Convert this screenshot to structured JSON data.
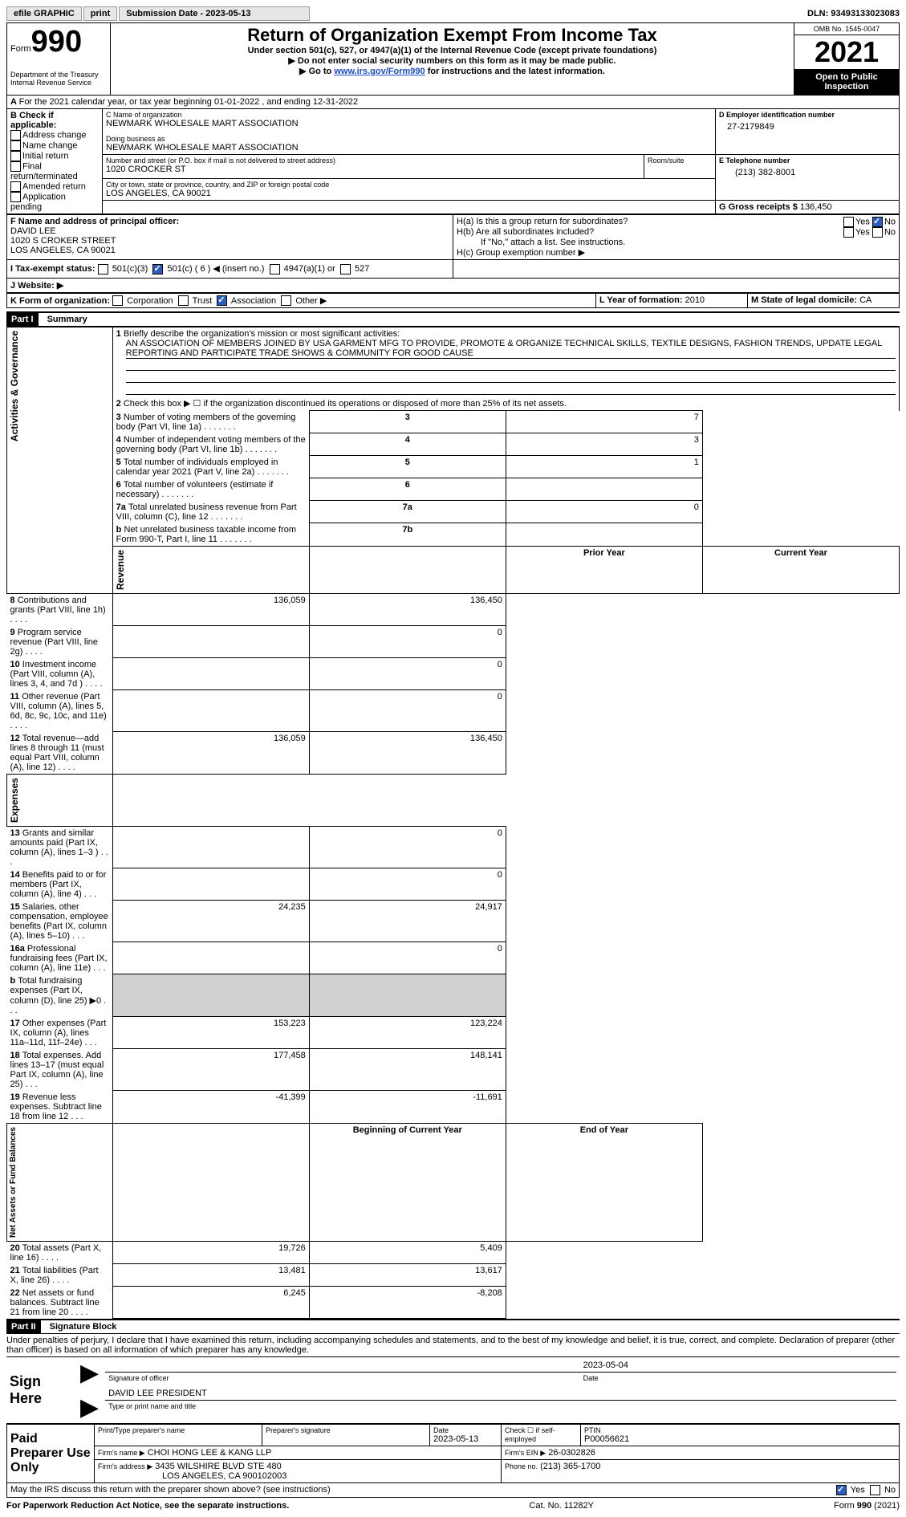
{
  "topbar": {
    "efile": "efile GRAPHIC",
    "print": "print",
    "submission_label": "Submission Date - 2023-05-13",
    "dln": "DLN: 93493133023083"
  },
  "header": {
    "form_label": "Form",
    "form_number": "990",
    "title": "Return of Organization Exempt From Income Tax",
    "subtitle": "Under section 501(c), 527, or 4947(a)(1) of the Internal Revenue Code (except private foundations)",
    "note1": "▶ Do not enter social security numbers on this form as it may be made public.",
    "note2_pre": "▶ Go to ",
    "note2_link": "www.irs.gov/Form990",
    "note2_post": " for instructions and the latest information.",
    "dept": "Department of the Treasury\nInternal Revenue Service",
    "omb": "OMB No. 1545-0047",
    "year": "2021",
    "open": "Open to Public Inspection"
  },
  "sectionA": {
    "calendar_line": "For the 2021 calendar year, or tax year beginning 01-01-2022   , and ending 12-31-2022",
    "check_label": "B Check if applicable:",
    "checks": [
      "Address change",
      "Name change",
      "Initial return",
      "Final return/terminated",
      "Amended return",
      "Application pending"
    ],
    "name_label": "C Name of organization",
    "org_name": "NEWMARK WHOLESALE MART ASSOCIATION",
    "dba_label": "Doing business as",
    "dba": "NEWMARK WHOLESALE MART ASSOCIATION",
    "street_label": "Number and street (or P.O. box if mail is not delivered to street address)",
    "room_label": "Room/suite",
    "street": "1020 CROCKER ST",
    "city_label": "City or town, state or province, country, and ZIP or foreign postal code",
    "city": "LOS ANGELES, CA  90021",
    "ein_label": "D Employer identification number",
    "ein": "27-2179849",
    "tel_label": "E Telephone number",
    "tel": "(213) 382-8001",
    "gross_label": "G Gross receipts $",
    "gross": "136,450",
    "officer_label": "F Name and address of principal officer:",
    "officer_name": "DAVID LEE",
    "officer_street": "1020 S CROKER STREET",
    "officer_city": "LOS ANGELES, CA  90021",
    "ha_label": "H(a)  Is this a group return for subordinates?",
    "hb_label": "H(b)  Are all subordinates included?",
    "hb_note": "If \"No,\" attach a list. See instructions.",
    "hc_label": "H(c)  Group exemption number ▶",
    "yes": "Yes",
    "no": "No",
    "tax_status_label": "I  Tax-exempt status:",
    "status_501c3": "501(c)(3)",
    "status_501c": "501(c) ( 6 ) ◀ (insert no.)",
    "status_4947": "4947(a)(1) or",
    "status_527": "527",
    "website_label": "J  Website: ▶",
    "form_org_label": "K Form of organization:",
    "corp": "Corporation",
    "trust": "Trust",
    "assoc": "Association",
    "other": "Other ▶",
    "year_formation_label": "L Year of formation:",
    "year_formation": "2010",
    "state_label": "M State of legal domicile:",
    "state": "CA"
  },
  "part1": {
    "header": "Part I",
    "title": "Summary",
    "line1_label": "Briefly describe the organization's mission or most significant activities:",
    "mission": "AN ASSOCIATION OF MEMBERS JOINED BY USA GARMENT MFG TO PROVIDE, PROMOTE & ORGANIZE TECHNICAL SKILLS, TEXTILE DESIGNS, FASHION TRENDS, UPDATE LEGAL REPORTING AND PARTICIPATE TRADE SHOWS & COMMUNITY FOR GOOD CAUSE",
    "line2": "Check this box ▶ ☐ if the organization discontinued its operations or disposed of more than 25% of its net assets.",
    "rows": [
      {
        "n": "3",
        "label": "Number of voting members of the governing body (Part VI, line 1a)",
        "box": "3",
        "val": "7"
      },
      {
        "n": "4",
        "label": "Number of independent voting members of the governing body (Part VI, line 1b)",
        "box": "4",
        "val": "3"
      },
      {
        "n": "5",
        "label": "Total number of individuals employed in calendar year 2021 (Part V, line 2a)",
        "box": "5",
        "val": "1"
      },
      {
        "n": "6",
        "label": "Total number of volunteers (estimate if necessary)",
        "box": "6",
        "val": ""
      },
      {
        "n": "7a",
        "label": "Total unrelated business revenue from Part VIII, column (C), line 12",
        "box": "7a",
        "val": "0"
      },
      {
        "n": "b",
        "label": "Net unrelated business taxable income from Form 990-T, Part I, line 11",
        "box": "7b",
        "val": ""
      }
    ],
    "prior_year": "Prior Year",
    "current_year": "Current Year",
    "revenue_rows": [
      {
        "n": "8",
        "label": "Contributions and grants (Part VIII, line 1h)",
        "py": "136,059",
        "cy": "136,450"
      },
      {
        "n": "9",
        "label": "Program service revenue (Part VIII, line 2g)",
        "py": "",
        "cy": "0"
      },
      {
        "n": "10",
        "label": "Investment income (Part VIII, column (A), lines 3, 4, and 7d )",
        "py": "",
        "cy": "0"
      },
      {
        "n": "11",
        "label": "Other revenue (Part VIII, column (A), lines 5, 6d, 8c, 9c, 10c, and 11e)",
        "py": "",
        "cy": "0"
      },
      {
        "n": "12",
        "label": "Total revenue—add lines 8 through 11 (must equal Part VIII, column (A), line 12)",
        "py": "136,059",
        "cy": "136,450"
      }
    ],
    "expense_rows": [
      {
        "n": "13",
        "label": "Grants and similar amounts paid (Part IX, column (A), lines 1–3 )",
        "py": "",
        "cy": "0"
      },
      {
        "n": "14",
        "label": "Benefits paid to or for members (Part IX, column (A), line 4)",
        "py": "",
        "cy": "0"
      },
      {
        "n": "15",
        "label": "Salaries, other compensation, employee benefits (Part IX, column (A), lines 5–10)",
        "py": "24,235",
        "cy": "24,917"
      },
      {
        "n": "16a",
        "label": "Professional fundraising fees (Part IX, column (A), line 11e)",
        "py": "",
        "cy": "0"
      },
      {
        "n": "b",
        "label": "Total fundraising expenses (Part IX, column (D), line 25) ▶0",
        "py": "gray",
        "cy": "gray"
      },
      {
        "n": "17",
        "label": "Other expenses (Part IX, column (A), lines 11a–11d, 11f–24e)",
        "py": "153,223",
        "cy": "123,224"
      },
      {
        "n": "18",
        "label": "Total expenses. Add lines 13–17 (must equal Part IX, column (A), line 25)",
        "py": "177,458",
        "cy": "148,141"
      },
      {
        "n": "19",
        "label": "Revenue less expenses. Subtract line 18 from line 12",
        "py": "-41,399",
        "cy": "-11,691"
      }
    ],
    "bocy": "Beginning of Current Year",
    "eoy": "End of Year",
    "net_rows": [
      {
        "n": "20",
        "label": "Total assets (Part X, line 16)",
        "py": "19,726",
        "cy": "5,409"
      },
      {
        "n": "21",
        "label": "Total liabilities (Part X, line 26)",
        "py": "13,481",
        "cy": "13,617"
      },
      {
        "n": "22",
        "label": "Net assets or fund balances. Subtract line 21 from line 20",
        "py": "6,245",
        "cy": "-8,208"
      }
    ],
    "side_labels": {
      "gov": "Activities & Governance",
      "rev": "Revenue",
      "exp": "Expenses",
      "net": "Net Assets or\nFund Balances"
    }
  },
  "part2": {
    "header": "Part II",
    "title": "Signature Block",
    "perjury": "Under penalties of perjury, I declare that I have examined this return, including accompanying schedules and statements, and to the best of my knowledge and belief, it is true, correct, and complete. Declaration of preparer (other than officer) is based on all information of which preparer has any knowledge.",
    "sign_here": "Sign Here",
    "sig_officer": "Signature of officer",
    "sig_date": "2023-05-04",
    "date_label": "Date",
    "officer_print": "DAVID LEE  PRESIDENT",
    "type_label": "Type or print name and title",
    "paid_label": "Paid Preparer Use Only",
    "print_name_label": "Print/Type preparer's name",
    "prep_sig_label": "Preparer's signature",
    "prep_date_label": "Date",
    "prep_date": "2023-05-13",
    "check_self": "Check ☐ if self-employed",
    "ptin_label": "PTIN",
    "ptin": "P00056621",
    "firm_name_label": "Firm's name    ▶",
    "firm_name": "CHOI HONG LEE & KANG LLP",
    "firm_ein_label": "Firm's EIN ▶",
    "firm_ein": "26-0302826",
    "firm_addr_label": "Firm's address ▶",
    "firm_addr1": "3435 WILSHIRE BLVD STE 480",
    "firm_addr2": "LOS ANGELES, CA  900102003",
    "phone_label": "Phone no.",
    "phone": "(213) 365-1700",
    "discuss": "May the IRS discuss this return with the preparer shown above? (see instructions)"
  },
  "footer": {
    "paperwork": "For Paperwork Reduction Act Notice, see the separate instructions.",
    "cat": "Cat. No. 11282Y",
    "form": "Form 990 (2021)"
  }
}
